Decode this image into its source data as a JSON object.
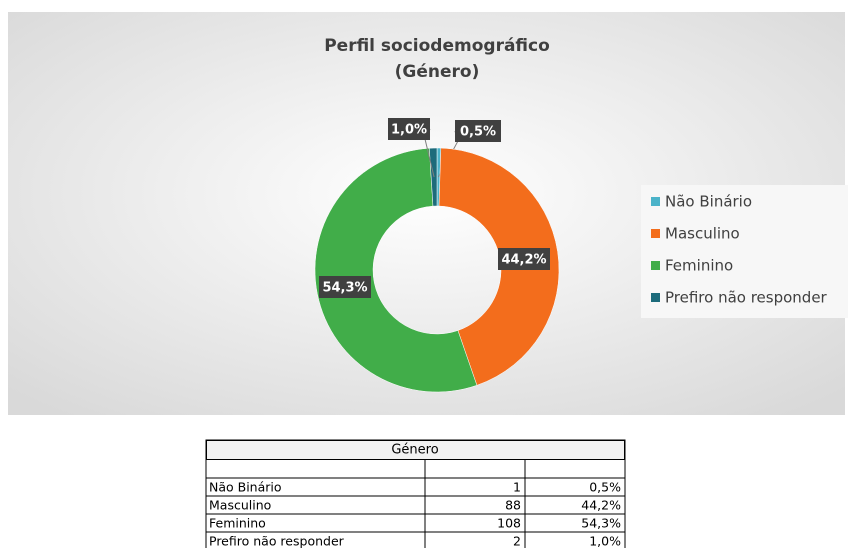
{
  "chart_data": {
    "type": "donut",
    "title_lines": [
      "Perfil sociodemográfico",
      "(Género)"
    ],
    "categories": [
      "Não Binário",
      "Masculino",
      "Feminino",
      "Prefiro não responder"
    ],
    "values": [
      0.5,
      44.2,
      54.3,
      1.0
    ],
    "value_labels": [
      "0,5%",
      "44,2%",
      "54,3%",
      "1,0%"
    ],
    "colors": [
      "#4bb3c9",
      "#f36d1c",
      "#41ad49",
      "#1d6b7b"
    ],
    "legend": "right"
  },
  "table": {
    "title": "Género",
    "rows": [
      [
        "Não Binário",
        1,
        "0,5%"
      ],
      [
        "Masculino",
        88,
        "44,2%"
      ],
      [
        "Feminino",
        108,
        "54,3%"
      ],
      [
        "Prefiro não responder",
        2,
        "1,0%"
      ]
    ]
  }
}
